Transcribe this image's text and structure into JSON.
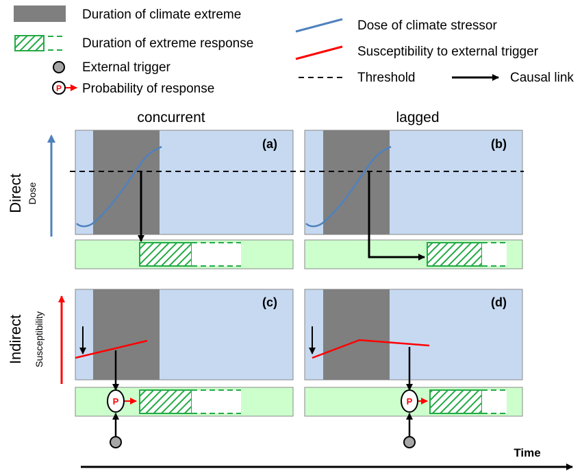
{
  "legend": {
    "climate_extreme": "Duration of climate extreme",
    "extreme_response": "Duration of extreme response",
    "external_trigger": "External trigger",
    "probability": "Probability of response",
    "probability_symbol": "P",
    "dose": "Dose of climate stressor",
    "susceptibility": "Susceptibility to external trigger",
    "threshold": "Threshold",
    "causal_link": "Causal link"
  },
  "columns": {
    "concurrent": "concurrent",
    "lagged": "lagged"
  },
  "rows": {
    "direct": "Direct",
    "indirect": "Indirect"
  },
  "axes": {
    "dose": "Dose",
    "susceptibility": "Susceptibility",
    "time": "Time"
  },
  "panels": {
    "a": "(a)",
    "b": "(b)",
    "c": "(c)",
    "d": "(d)"
  },
  "colors": {
    "panel_bg": "#c6d9f1",
    "response_bg": "#ccffcc",
    "extreme": "#7f7f7f",
    "response_hatch": "#22aa44",
    "dose_line": "#4f81bd",
    "susceptibility_line": "#ff0000",
    "trigger": "#a6a6a6"
  }
}
